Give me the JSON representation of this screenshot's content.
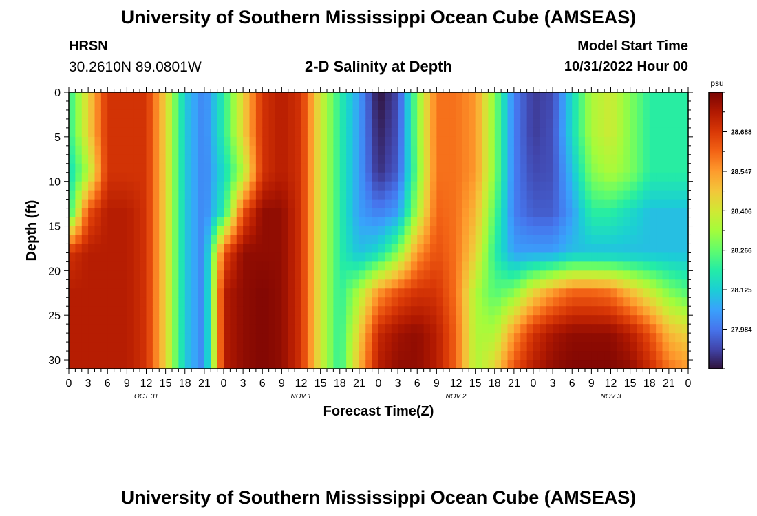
{
  "header": {
    "title": "University of Southern Mississippi Ocean Cube (AMSEAS)",
    "station": "HRSN",
    "coords": "30.2610N  89.0801W",
    "subtitle": "2-D Salinity at Depth",
    "model_start_label": "Model Start Time",
    "model_start_value": "10/31/2022 Hour 00"
  },
  "footer": {
    "title": "University of Southern Mississippi Ocean Cube (AMSEAS)"
  },
  "chart_data": {
    "type": "heatmap",
    "title": "2-D Salinity at Depth",
    "xlabel": "Forecast Time(Z)",
    "ylabel": "Depth (ft)",
    "x_range_hours": [
      0,
      96
    ],
    "ylim": [
      0,
      31
    ],
    "y_ticks": [
      0,
      5,
      10,
      15,
      20,
      25,
      30
    ],
    "x_tick_labels": [
      "0",
      "3",
      "6",
      "9",
      "12",
      "15",
      "18",
      "21",
      "0",
      "3",
      "6",
      "9",
      "12",
      "15",
      "18",
      "21",
      "0",
      "3",
      "6",
      "9",
      "12",
      "15",
      "18",
      "21",
      "0",
      "3",
      "6",
      "9",
      "12",
      "15",
      "18",
      "21",
      "0"
    ],
    "day_labels": [
      "OCT 31",
      "NOV 1",
      "NOV 2",
      "NOV 3"
    ],
    "colorbar": {
      "unit": "psu",
      "range": [
        27.843,
        28.829
      ],
      "ticks": [
        "28.688",
        "28.547",
        "28.406",
        "28.266",
        "28.125",
        "27.984"
      ],
      "colors": [
        "#30123b",
        "#4145ab",
        "#4675ed",
        "#39a2fc",
        "#1bcfd4",
        "#24eca6",
        "#61fc6c",
        "#a4fc3b",
        "#d1e834",
        "#f3c63a",
        "#fe9b2d",
        "#f36315",
        "#d93806",
        "#b11901",
        "#7a0403"
      ]
    },
    "salinity_field_psu": [
      [
        28.2,
        28.45,
        28.7,
        28.7,
        28.7,
        28.45,
        28.12,
        28.0,
        28.2,
        28.45,
        28.7,
        28.75,
        28.7,
        28.4,
        28.2,
        28.05,
        27.84,
        27.92,
        28.3,
        28.6,
        28.6,
        28.55,
        28.3,
        28.0,
        27.9,
        27.92,
        28.15,
        28.35,
        28.4,
        28.3,
        28.2,
        28.2,
        28.2
      ],
      [
        28.2,
        28.45,
        28.7,
        28.7,
        28.7,
        28.45,
        28.12,
        28.0,
        28.2,
        28.45,
        28.7,
        28.75,
        28.7,
        28.4,
        28.2,
        28.05,
        27.86,
        27.93,
        28.3,
        28.6,
        28.6,
        28.55,
        28.3,
        28.0,
        27.9,
        27.93,
        28.15,
        28.35,
        28.4,
        28.3,
        28.2,
        28.2,
        28.2
      ],
      [
        28.15,
        28.35,
        28.7,
        28.7,
        28.7,
        28.45,
        28.12,
        28.0,
        28.15,
        28.35,
        28.7,
        28.75,
        28.7,
        28.4,
        28.2,
        28.05,
        27.88,
        27.95,
        28.28,
        28.6,
        28.6,
        28.55,
        28.3,
        28.0,
        27.92,
        27.93,
        28.1,
        28.3,
        28.35,
        28.3,
        28.2,
        28.2,
        28.2
      ],
      [
        28.2,
        28.65,
        28.75,
        28.75,
        28.7,
        28.45,
        28.12,
        28.0,
        28.2,
        28.65,
        28.8,
        28.8,
        28.7,
        28.4,
        28.2,
        28.05,
        28.0,
        28.05,
        28.35,
        28.62,
        28.6,
        28.5,
        28.25,
        28.0,
        27.95,
        27.95,
        28.05,
        28.2,
        28.2,
        28.15,
        28.1,
        28.1,
        28.1
      ],
      [
        28.7,
        28.75,
        28.75,
        28.75,
        28.7,
        28.45,
        28.12,
        28.0,
        28.65,
        28.8,
        28.8,
        28.8,
        28.7,
        28.4,
        28.2,
        28.1,
        28.15,
        28.3,
        28.55,
        28.65,
        28.6,
        28.45,
        28.2,
        28.05,
        28.05,
        28.05,
        28.1,
        28.1,
        28.1,
        28.1,
        28.1,
        28.1,
        28.1
      ],
      [
        28.75,
        28.75,
        28.75,
        28.75,
        28.7,
        28.45,
        28.12,
        28.0,
        28.75,
        28.8,
        28.82,
        28.8,
        28.7,
        28.4,
        28.2,
        28.35,
        28.55,
        28.65,
        28.7,
        28.7,
        28.6,
        28.35,
        28.25,
        28.3,
        28.45,
        28.55,
        28.62,
        28.62,
        28.6,
        28.5,
        28.4,
        28.3,
        28.25
      ],
      [
        28.75,
        28.75,
        28.75,
        28.75,
        28.7,
        28.45,
        28.12,
        28.0,
        28.75,
        28.8,
        28.82,
        28.8,
        28.7,
        28.4,
        28.2,
        28.45,
        28.72,
        28.78,
        28.8,
        28.75,
        28.62,
        28.35,
        28.35,
        28.55,
        28.7,
        28.77,
        28.8,
        28.8,
        28.8,
        28.75,
        28.65,
        28.5,
        28.45
      ],
      [
        28.75,
        28.75,
        28.75,
        28.75,
        28.7,
        28.45,
        28.12,
        28.0,
        28.75,
        28.8,
        28.82,
        28.8,
        28.7,
        28.4,
        28.2,
        28.5,
        28.75,
        28.8,
        28.8,
        28.75,
        28.62,
        28.35,
        28.45,
        28.65,
        28.75,
        28.8,
        28.82,
        28.82,
        28.82,
        28.8,
        28.72,
        28.6,
        28.55
      ]
    ],
    "field_depths_ft": [
      0,
      4.5,
      9,
      13.5,
      18,
      22.5,
      27,
      31
    ],
    "field_times_hours_step": 3,
    "annotations": []
  }
}
